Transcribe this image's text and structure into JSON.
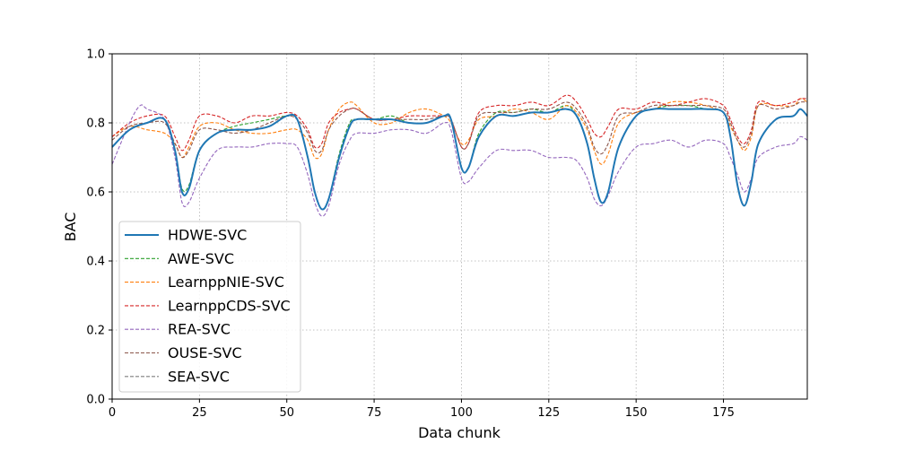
{
  "chart_data": {
    "type": "line",
    "title": "",
    "xlabel": "Data chunk",
    "ylabel": "BAC",
    "xlim": [
      0,
      199
    ],
    "ylim": [
      0.0,
      1.0
    ],
    "xticks": [
      0,
      25,
      50,
      75,
      100,
      125,
      150,
      175
    ],
    "yticks": [
      0.0,
      0.2,
      0.4,
      0.6,
      0.8,
      1.0
    ],
    "xtick_labels": [
      "0",
      "25",
      "50",
      "75",
      "100",
      "125",
      "150",
      "175"
    ],
    "ytick_labels": [
      "0.0",
      "0.2",
      "0.4",
      "0.6",
      "0.8",
      "1.0"
    ],
    "grid": true,
    "legend_position": "lower-left",
    "series": [
      {
        "name": "HDWE-SVC",
        "color": "#1f77b4",
        "style": "solid",
        "x": [
          0,
          5,
          10,
          15,
          18,
          20,
          22,
          25,
          30,
          35,
          40,
          45,
          50,
          53,
          56,
          58,
          60,
          62,
          65,
          68,
          70,
          75,
          80,
          85,
          90,
          95,
          97,
          100,
          102,
          105,
          110,
          115,
          120,
          125,
          130,
          133,
          136,
          138,
          140,
          142,
          145,
          150,
          155,
          160,
          165,
          170,
          175,
          177,
          179,
          181,
          183,
          185,
          190,
          195,
          197,
          199
        ],
        "y": [
          0.73,
          0.78,
          0.8,
          0.81,
          0.72,
          0.6,
          0.61,
          0.72,
          0.77,
          0.78,
          0.78,
          0.79,
          0.82,
          0.81,
          0.7,
          0.6,
          0.55,
          0.58,
          0.7,
          0.79,
          0.81,
          0.81,
          0.81,
          0.8,
          0.8,
          0.82,
          0.81,
          0.67,
          0.67,
          0.76,
          0.82,
          0.82,
          0.83,
          0.83,
          0.84,
          0.82,
          0.74,
          0.64,
          0.57,
          0.6,
          0.73,
          0.82,
          0.84,
          0.84,
          0.84,
          0.84,
          0.83,
          0.76,
          0.62,
          0.56,
          0.63,
          0.74,
          0.81,
          0.82,
          0.84,
          0.82
        ]
      },
      {
        "name": "AWE-SVC",
        "color": "#2ca02c",
        "style": "dashed",
        "x": [
          0,
          5,
          10,
          15,
          18,
          20,
          22,
          25,
          30,
          35,
          40,
          45,
          50,
          53,
          56,
          58,
          60,
          62,
          65,
          68,
          70,
          75,
          80,
          85,
          90,
          95,
          97,
          100,
          102,
          105,
          110,
          115,
          120,
          125,
          130,
          133,
          136,
          138,
          140,
          142,
          145,
          150,
          155,
          160,
          165,
          170,
          175,
          177,
          179,
          181,
          183,
          185,
          190,
          195,
          197,
          199
        ],
        "y": [
          0.73,
          0.78,
          0.8,
          0.81,
          0.72,
          0.61,
          0.62,
          0.72,
          0.77,
          0.79,
          0.8,
          0.81,
          0.82,
          0.81,
          0.7,
          0.6,
          0.55,
          0.58,
          0.71,
          0.8,
          0.81,
          0.81,
          0.82,
          0.8,
          0.8,
          0.82,
          0.81,
          0.67,
          0.67,
          0.77,
          0.83,
          0.83,
          0.84,
          0.83,
          0.85,
          0.82,
          0.74,
          0.64,
          0.57,
          0.6,
          0.73,
          0.82,
          0.84,
          0.85,
          0.85,
          0.84,
          0.83,
          0.76,
          0.62,
          0.56,
          0.63,
          0.74,
          0.81,
          0.82,
          0.84,
          0.82
        ]
      },
      {
        "name": "LearnppNIE-SVC",
        "color": "#ff7f0e",
        "style": "dashed",
        "x": [
          0,
          5,
          10,
          15,
          18,
          20,
          22,
          25,
          30,
          35,
          40,
          45,
          50,
          53,
          56,
          58,
          60,
          62,
          65,
          68,
          70,
          75,
          80,
          85,
          90,
          95,
          97,
          100,
          102,
          105,
          110,
          115,
          120,
          125,
          130,
          133,
          136,
          138,
          140,
          142,
          145,
          150,
          155,
          160,
          165,
          170,
          175,
          177,
          179,
          181,
          183,
          185,
          190,
          195,
          197,
          199
        ],
        "y": [
          0.76,
          0.79,
          0.78,
          0.77,
          0.74,
          0.7,
          0.73,
          0.79,
          0.8,
          0.78,
          0.77,
          0.77,
          0.78,
          0.78,
          0.75,
          0.7,
          0.71,
          0.78,
          0.84,
          0.86,
          0.85,
          0.8,
          0.8,
          0.83,
          0.84,
          0.82,
          0.8,
          0.74,
          0.75,
          0.81,
          0.82,
          0.84,
          0.83,
          0.81,
          0.85,
          0.83,
          0.78,
          0.72,
          0.68,
          0.71,
          0.8,
          0.83,
          0.84,
          0.86,
          0.86,
          0.85,
          0.83,
          0.79,
          0.75,
          0.72,
          0.76,
          0.85,
          0.85,
          0.85,
          0.87,
          0.86
        ]
      },
      {
        "name": "LearnppCDS-SVC",
        "color": "#d62728",
        "style": "dashed",
        "x": [
          0,
          5,
          10,
          15,
          18,
          20,
          22,
          25,
          30,
          35,
          40,
          45,
          50,
          53,
          56,
          58,
          60,
          62,
          65,
          68,
          70,
          75,
          80,
          85,
          90,
          95,
          97,
          100,
          102,
          105,
          110,
          115,
          120,
          125,
          130,
          133,
          136,
          138,
          140,
          142,
          145,
          150,
          155,
          160,
          165,
          170,
          175,
          177,
          179,
          181,
          183,
          185,
          190,
          195,
          197,
          199
        ],
        "y": [
          0.76,
          0.8,
          0.82,
          0.82,
          0.76,
          0.72,
          0.75,
          0.82,
          0.82,
          0.8,
          0.82,
          0.82,
          0.83,
          0.82,
          0.78,
          0.73,
          0.74,
          0.8,
          0.83,
          0.84,
          0.84,
          0.81,
          0.81,
          0.82,
          0.82,
          0.82,
          0.81,
          0.73,
          0.74,
          0.83,
          0.85,
          0.85,
          0.86,
          0.85,
          0.88,
          0.86,
          0.81,
          0.77,
          0.76,
          0.79,
          0.84,
          0.84,
          0.86,
          0.85,
          0.86,
          0.87,
          0.85,
          0.81,
          0.76,
          0.74,
          0.78,
          0.86,
          0.85,
          0.86,
          0.87,
          0.87
        ]
      },
      {
        "name": "REA-SVC",
        "color": "#9467bd",
        "style": "dashed",
        "x": [
          0,
          5,
          8,
          10,
          15,
          18,
          20,
          22,
          25,
          30,
          35,
          40,
          45,
          50,
          53,
          56,
          58,
          60,
          62,
          65,
          68,
          70,
          75,
          80,
          85,
          90,
          95,
          97,
          100,
          102,
          105,
          110,
          115,
          120,
          125,
          130,
          133,
          136,
          138,
          140,
          142,
          145,
          150,
          155,
          160,
          165,
          170,
          175,
          177,
          179,
          181,
          183,
          185,
          190,
          195,
          197,
          199
        ],
        "y": [
          0.68,
          0.8,
          0.85,
          0.84,
          0.81,
          0.7,
          0.57,
          0.57,
          0.64,
          0.72,
          0.73,
          0.73,
          0.74,
          0.74,
          0.73,
          0.65,
          0.57,
          0.53,
          0.56,
          0.68,
          0.75,
          0.77,
          0.77,
          0.78,
          0.78,
          0.77,
          0.8,
          0.78,
          0.64,
          0.63,
          0.67,
          0.72,
          0.72,
          0.72,
          0.7,
          0.7,
          0.69,
          0.64,
          0.58,
          0.56,
          0.59,
          0.66,
          0.73,
          0.74,
          0.75,
          0.73,
          0.75,
          0.74,
          0.7,
          0.65,
          0.6,
          0.64,
          0.7,
          0.73,
          0.74,
          0.76,
          0.75
        ]
      },
      {
        "name": "OUSE-SVC",
        "color": "#8c564b",
        "style": "dashed",
        "x": [
          0,
          5,
          10,
          15,
          18,
          20,
          22,
          25,
          30,
          35,
          40,
          45,
          50,
          53,
          56,
          58,
          60,
          62,
          65,
          68,
          70,
          75,
          80,
          85,
          90,
          95,
          97,
          100,
          102,
          105,
          110,
          115,
          120,
          125,
          130,
          133,
          136,
          138,
          140,
          142,
          145,
          150,
          155,
          160,
          165,
          170,
          175,
          177,
          179,
          181,
          183,
          185,
          190,
          195,
          197,
          199
        ],
        "y": [
          0.75,
          0.79,
          0.8,
          0.8,
          0.74,
          0.7,
          0.72,
          0.78,
          0.78,
          0.77,
          0.78,
          0.8,
          0.82,
          0.81,
          0.77,
          0.72,
          0.72,
          0.78,
          0.82,
          0.84,
          0.84,
          0.81,
          0.81,
          0.81,
          0.81,
          0.82,
          0.81,
          0.73,
          0.74,
          0.82,
          0.83,
          0.83,
          0.84,
          0.84,
          0.86,
          0.84,
          0.79,
          0.73,
          0.71,
          0.74,
          0.82,
          0.83,
          0.85,
          0.85,
          0.85,
          0.85,
          0.84,
          0.8,
          0.75,
          0.73,
          0.77,
          0.85,
          0.84,
          0.85,
          0.86,
          0.86
        ]
      },
      {
        "name": "SEA-SVC",
        "color": "#7f7f7f",
        "style": "dashed",
        "x": [
          0,
          5,
          10,
          15,
          18,
          20,
          22,
          25,
          30,
          35,
          40,
          45,
          50,
          53,
          56,
          58,
          60,
          62,
          65,
          68,
          70,
          75,
          80,
          85,
          90,
          95,
          97,
          100,
          102,
          105,
          110,
          115,
          120,
          125,
          130,
          133,
          136,
          138,
          140,
          142,
          145,
          150,
          155,
          160,
          165,
          170,
          175,
          177,
          179,
          181,
          183,
          185,
          190,
          195,
          197,
          199
        ],
        "y": [
          0.73,
          0.78,
          0.8,
          0.81,
          0.72,
          0.6,
          0.61,
          0.72,
          0.77,
          0.78,
          0.78,
          0.79,
          0.82,
          0.81,
          0.7,
          0.6,
          0.55,
          0.58,
          0.7,
          0.79,
          0.81,
          0.81,
          0.81,
          0.8,
          0.8,
          0.82,
          0.81,
          0.67,
          0.67,
          0.76,
          0.82,
          0.82,
          0.83,
          0.83,
          0.84,
          0.82,
          0.74,
          0.64,
          0.57,
          0.6,
          0.73,
          0.82,
          0.84,
          0.84,
          0.84,
          0.84,
          0.83,
          0.76,
          0.62,
          0.56,
          0.63,
          0.74,
          0.81,
          0.82,
          0.84,
          0.82
        ]
      }
    ]
  }
}
